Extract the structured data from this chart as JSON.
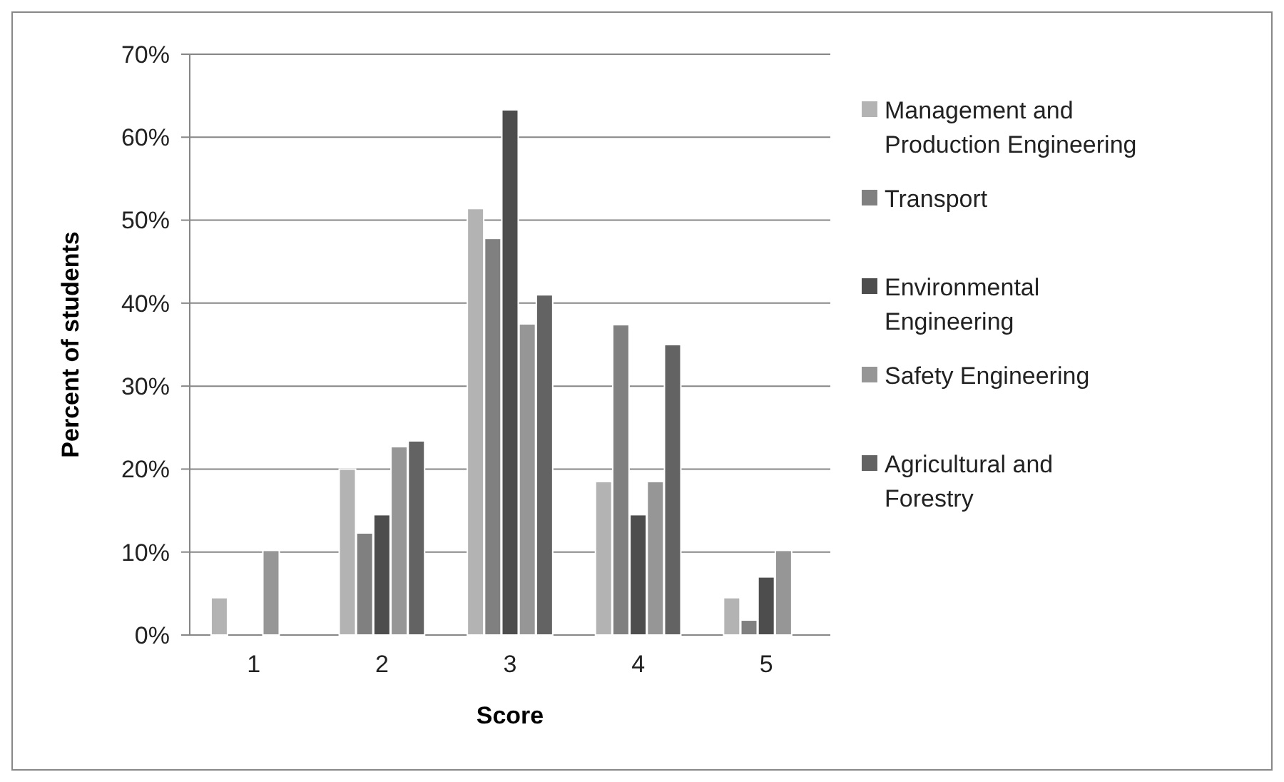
{
  "chart_data": {
    "type": "bar",
    "xlabel": "Score",
    "ylabel": "Percent of students",
    "categories": [
      "1",
      "2",
      "3",
      "4",
      "5"
    ],
    "series": [
      {
        "name": "Management and Production Engineering",
        "color": "#b3b3b3",
        "values": [
          4.5,
          20,
          51.4,
          18.5,
          4.5
        ]
      },
      {
        "name": "Transport",
        "color": "#808080",
        "values": [
          0,
          12.3,
          47.8,
          37.4,
          1.8
        ]
      },
      {
        "name": "Environmental Engineering",
        "color": "#4d4d4d",
        "values": [
          0,
          14.5,
          63.3,
          14.5,
          7
        ]
      },
      {
        "name": "Safety Engineering",
        "color": "#969696",
        "values": [
          10.2,
          22.7,
          37.5,
          18.5,
          10.2
        ]
      },
      {
        "name": "Agricultural and Forestry",
        "color": "#636363",
        "values": [
          0,
          23.4,
          41,
          35,
          0
        ]
      }
    ],
    "ylim": [
      0,
      70
    ],
    "yticks": [
      {
        "value": 0,
        "label": "0%"
      },
      {
        "value": 10,
        "label": "10%"
      },
      {
        "value": 20,
        "label": "20%"
      },
      {
        "value": 30,
        "label": "30%"
      },
      {
        "value": 40,
        "label": "40%"
      },
      {
        "value": 50,
        "label": "50%"
      },
      {
        "value": 60,
        "label": "60%"
      },
      {
        "value": 70,
        "label": "70%"
      }
    ],
    "grid": "y",
    "legend": "right"
  }
}
